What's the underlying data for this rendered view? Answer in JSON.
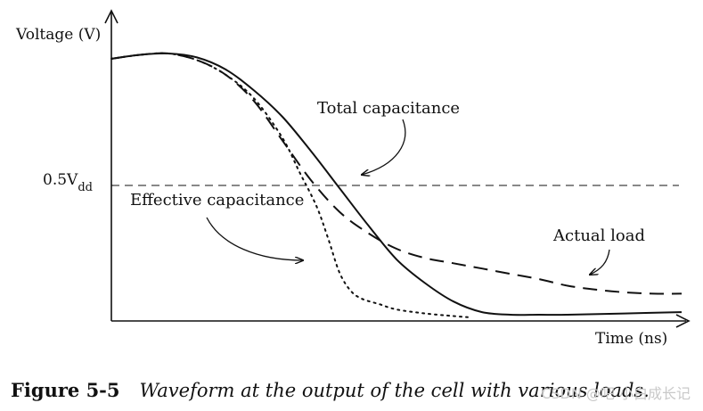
{
  "chart_data": {
    "type": "line",
    "title": "",
    "ylabel": "Voltage (V)",
    "xlabel": "Time (ns)",
    "xlim": [
      0,
      10
    ],
    "ylim": [
      0,
      1.0
    ],
    "ticks": {
      "y": [
        {
          "value": 0.5,
          "label_main": "0.5V",
          "label_sub": "dd"
        }
      ]
    },
    "reference_lines": [
      {
        "name": "0.5Vdd",
        "y": 0.5,
        "style": "dashed"
      }
    ],
    "series": [
      {
        "name": "Total capacitance",
        "style": "solid",
        "x": [
          0,
          0.5,
          1.0,
          1.5,
          2.0,
          2.5,
          3.0,
          3.5,
          4.0,
          4.5,
          5.0,
          5.5,
          6.0,
          6.5,
          7.0,
          7.5,
          8.0,
          9.0,
          10.0
        ],
        "y": [
          0.98,
          0.995,
          1.0,
          0.985,
          0.94,
          0.86,
          0.76,
          0.63,
          0.49,
          0.35,
          0.22,
          0.13,
          0.06,
          0.02,
          0.01,
          0.01,
          0.01,
          0.015,
          0.02
        ]
      },
      {
        "name": "Actual load",
        "style": "dashed",
        "x": [
          0,
          0.5,
          1.0,
          1.5,
          2.0,
          2.5,
          3.0,
          3.5,
          4.0,
          4.5,
          5.0,
          5.5,
          6.0,
          6.5,
          7.0,
          7.5,
          8.0,
          8.5,
          9.0,
          9.5,
          10.0
        ],
        "y": [
          0.98,
          0.995,
          1.0,
          0.975,
          0.92,
          0.82,
          0.67,
          0.52,
          0.4,
          0.32,
          0.26,
          0.225,
          0.205,
          0.185,
          0.165,
          0.145,
          0.12,
          0.105,
          0.095,
          0.09,
          0.09
        ]
      },
      {
        "name": "Effective capacitance",
        "style": "dotted",
        "x": [
          0,
          0.5,
          1.0,
          1.5,
          2.0,
          2.5,
          3.0,
          3.3,
          3.6,
          3.8,
          4.0,
          4.2,
          4.4,
          4.7,
          5.0,
          5.5,
          6.0,
          6.3
        ],
        "y": [
          0.98,
          0.995,
          1.0,
          0.975,
          0.92,
          0.83,
          0.68,
          0.55,
          0.42,
          0.3,
          0.17,
          0.1,
          0.07,
          0.05,
          0.03,
          0.015,
          0.005,
          0.0
        ]
      }
    ],
    "annotations": [
      {
        "text": "Total capacitance",
        "target_series": "Total capacitance"
      },
      {
        "text": "Effective capacitance",
        "target_series": "Effective capacitance"
      },
      {
        "text": "Actual load",
        "target_series": "Actual load"
      }
    ]
  },
  "caption": {
    "number": "Figure 5-5",
    "text": "Waveform at the output of the cell with various loads."
  },
  "watermark": "CSDN @吧  小白成长记"
}
